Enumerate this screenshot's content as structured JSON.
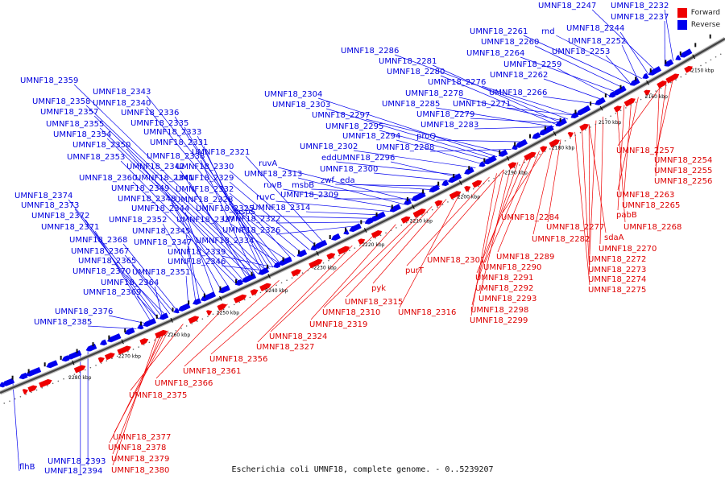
{
  "caption": "Escherichia coli UMNF18, complete genome. - 0..5239207",
  "legend": [
    {
      "label": "Forward",
      "color": "#ee0000"
    },
    {
      "label": "Reverse",
      "color": "#0000ee"
    }
  ],
  "colors": {
    "forward": "#ee0000",
    "reverse": "#0000ee",
    "backbone": "#444444"
  },
  "ticks": [
    "2150 kbp",
    "2160 kbp",
    "2170 kbp",
    "2180 kbp",
    "2190 kbp",
    "2200 kbp",
    "2210 kbp",
    "2220 kbp",
    "2230 kbp",
    "2240 kbp",
    "2250 kbp",
    "2260 kbp",
    "2270 kbp",
    "2280 kbp"
  ],
  "reverse_labels": [
    "UMNF18_2232",
    "UMNF18_2237",
    "UMNF18_2247",
    "UMNF18_2244",
    "rnd",
    "UMNF18_2261",
    "UMNF18_2252",
    "UMNF18_2260",
    "UMNF18_2264",
    "UMNF18_2253",
    "UMNF18_2259",
    "UMNF18_2262",
    "UMNF18_2286",
    "UMNF18_2281",
    "UMNF18_2280",
    "UMNF18_2276",
    "UMNF18_2278",
    "UMNF18_2266",
    "UMNF18_2285",
    "UMNF18_2271",
    "UMNF18_2279",
    "UMNF18_2283",
    "proQ",
    "UMNF18_2288",
    "UMNF18_2304",
    "UMNF18_2303",
    "UMNF18_2297",
    "UMNF18_2295",
    "UMNF18_2294",
    "UMNF18_2302",
    "edd",
    "UMNF18_2296",
    "UMNF18_2300",
    "zwf",
    "eda",
    "msbB",
    "UMNF18_2309",
    "ruvA",
    "UMNF18_2313",
    "ruvB",
    "ruvC",
    "UMNF18_2314",
    "aspS",
    "UMNF18_2322",
    "UMNF18_2326",
    "UMNF18_2359",
    "UMNF18_2343",
    "UMNF18_2358",
    "UMNF18_2340",
    "UMNF18_2357",
    "UMNF18_2336",
    "UMNF18_2355",
    "UMNF18_2335",
    "UMNF18_2354",
    "UMNF18_2333",
    "UMNF18_2350",
    "UMNF18_2331",
    "UMNF18_2353",
    "UMNF18_2338",
    "UMNF18_2321",
    "UMNF18_2342",
    "UMNF18_2330",
    "UMNF18_2360",
    "UMNF18_2341",
    "UMNF18_2329",
    "UMNF18_2349",
    "UMNF18_2332",
    "UMNF18_2374",
    "UMNF18_2348",
    "UMNF18_2328",
    "UMNF18_2373",
    "UMNF18_2344",
    "UMNF18_2325",
    "UMNF18_2372",
    "UMNF18_2352",
    "UMNF18_2337",
    "UMNF18_2371",
    "UMNF18_2345",
    "UMNF18_2368",
    "UMNF18_2347",
    "UMNF18_2334",
    "UMNF18_2367",
    "UMNF18_2339",
    "UMNF18_2365",
    "UMNF18_2346",
    "UMNF18_2370",
    "UMNF18_2351",
    "UMNF18_2364",
    "UMNF18_2369",
    "UMNF18_2376",
    "UMNF18_2385",
    "UMNF18_2393",
    "UMNF18_2394",
    "flhB"
  ],
  "forward_labels": [
    "UMNF18_2257",
    "UMNF18_2254",
    "UMNF18_2255",
    "UMNF18_2256",
    "UMNF18_2263",
    "UMNF18_2265",
    "pabB",
    "UMNF18_2268",
    "UMNF18_2284",
    "UMNF18_2277",
    "sdaA",
    "UMNF18_2282",
    "UMNF18_2270",
    "UMNF18_2272",
    "UMNF18_2273",
    "UMNF18_2274",
    "UMNF18_2275",
    "UMNF18_2289",
    "UMNF18_2301",
    "UMNF18_2290",
    "purT",
    "UMNF18_2291",
    "UMNF18_2292",
    "UMNF18_2293",
    "UMNF18_2298",
    "UMNF18_2299",
    "pyk",
    "UMNF18_2315",
    "UMNF18_2316",
    "UMNF18_2310",
    "UMNF18_2319",
    "UMNF18_2324",
    "UMNF18_2327",
    "UMNF18_2356",
    "UMNF18_2361",
    "UMNF18_2366",
    "UMNF18_2375",
    "UMNF18_2377",
    "UMNF18_2378",
    "UMNF18_2379",
    "UMNF18_2380"
  ]
}
